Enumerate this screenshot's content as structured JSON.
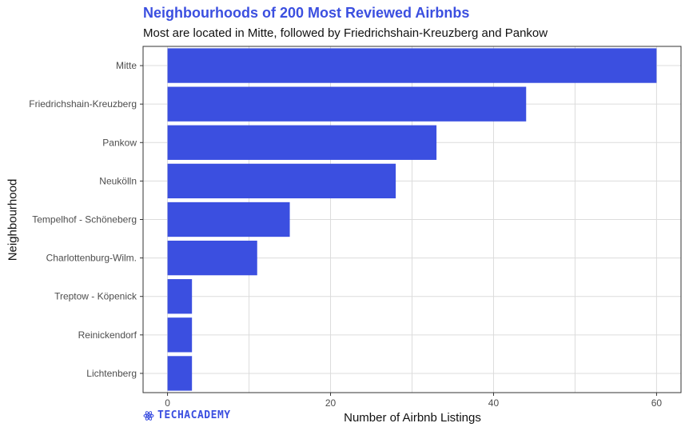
{
  "chart_data": {
    "type": "bar",
    "orientation": "horizontal",
    "title": "Neighbourhoods of 200 Most Reviewed Airbnbs",
    "subtitle": "Most are located in Mitte, followed by Friedrichshain-Kreuzberg and Pankow",
    "xlabel": "Number of Airbnb Listings",
    "ylabel": "Neighbourhood",
    "categories": [
      "Mitte",
      "Friedrichshain-Kreuzberg",
      "Pankow",
      "Neukölln",
      "Tempelhof - Schöneberg",
      "Charlottenburg-Wilm.",
      "Treptow - Köpenick",
      "Reinickendorf",
      "Lichtenberg"
    ],
    "values": [
      60,
      44,
      33,
      28,
      15,
      11,
      3,
      3,
      3
    ],
    "xlim": [
      -3,
      63
    ],
    "xticks": [
      0,
      20,
      40,
      60
    ],
    "grid": true,
    "bar_color": "#3b4fe0"
  },
  "logo": {
    "text": "TECHACADEMY",
    "icon": "atom-icon"
  },
  "colors": {
    "accent": "#3b4fe0",
    "grid": "#dcdcdc",
    "border": "#333333"
  }
}
